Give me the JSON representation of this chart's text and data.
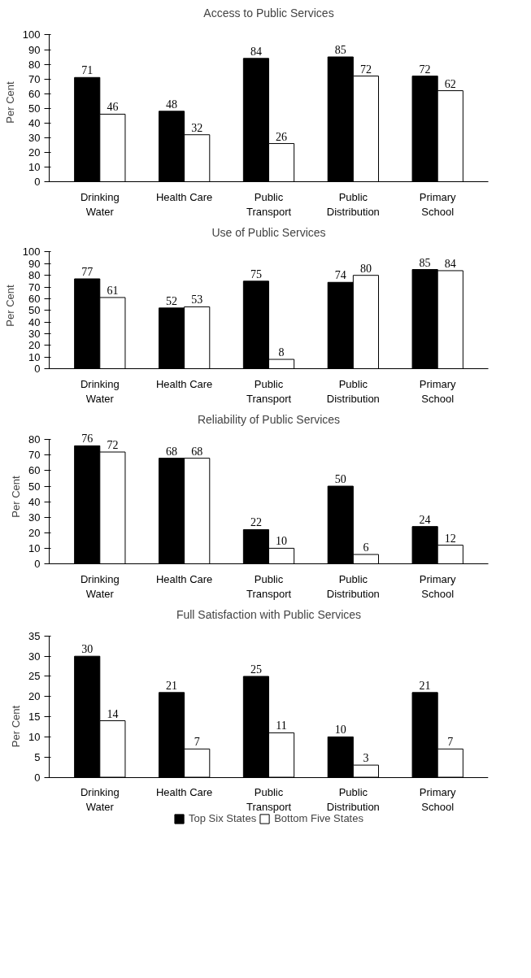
{
  "chart_data": [
    {
      "type": "bar",
      "title": "Access to Public Services",
      "ylabel": "Per Cent",
      "categories": [
        "Drinking Water",
        "Health Care",
        "Public Transport",
        "Public Distribution",
        "Primary School"
      ],
      "series": [
        {
          "color": "#000000",
          "values": [
            71,
            48,
            84,
            85,
            72
          ]
        },
        {
          "color": "#ffffff",
          "values": [
            46,
            32,
            26,
            72,
            62
          ]
        }
      ],
      "ylim": [
        0,
        100
      ],
      "yticks": [
        0,
        10,
        20,
        30,
        40,
        50,
        60,
        70,
        80,
        90,
        100
      ],
      "data_labels": true,
      "grid": false
    },
    {
      "type": "bar",
      "title": "Use of Public Services",
      "ylabel": "Per Cent",
      "categories": [
        "Drinking Water",
        "Health Care",
        "Public Transport",
        "Public Distribution",
        "Primary School"
      ],
      "series": [
        {
          "color": "#000000",
          "values": [
            77,
            52,
            75,
            74,
            85
          ]
        },
        {
          "color": "#ffffff",
          "values": [
            61,
            53,
            8,
            80,
            84
          ]
        }
      ],
      "ylim": [
        0,
        100
      ],
      "yticks": [
        0,
        10,
        20,
        30,
        40,
        50,
        60,
        70,
        80,
        90,
        100
      ],
      "data_labels": true,
      "grid": false
    },
    {
      "type": "bar",
      "title": "Reliability of Public Services",
      "ylabel": "Per Cent",
      "categories": [
        "Drinking Water",
        "Health Care",
        "Public Transport",
        "Public Distribution",
        "Primary School"
      ],
      "series": [
        {
          "color": "#000000",
          "values": [
            76,
            68,
            22,
            50,
            24
          ]
        },
        {
          "color": "#ffffff",
          "values": [
            72,
            68,
            10,
            6,
            12
          ]
        }
      ],
      "ylim": [
        0,
        80
      ],
      "yticks": [
        0,
        10,
        20,
        30,
        40,
        50,
        60,
        70,
        80
      ],
      "data_labels": true,
      "grid": false
    },
    {
      "type": "bar",
      "title": "Full Satisfaction with Public Services",
      "ylabel": "Per Cent",
      "categories": [
        "Drinking Water",
        "Health Care",
        "Public Transport",
        "Public Distribution",
        "Primary School"
      ],
      "series": [
        {
          "name": "Top Six States",
          "color": "#000000",
          "values": [
            30,
            21,
            25,
            10,
            21
          ]
        },
        {
          "name": "Bottom Five States",
          "color": "#ffffff",
          "values": [
            14,
            7,
            11,
            3,
            7
          ]
        }
      ],
      "ylim": [
        0,
        35
      ],
      "yticks": [
        0,
        5,
        10,
        15,
        20,
        25,
        30,
        35
      ],
      "data_labels": true,
      "grid": false,
      "legend": "bottom"
    }
  ]
}
